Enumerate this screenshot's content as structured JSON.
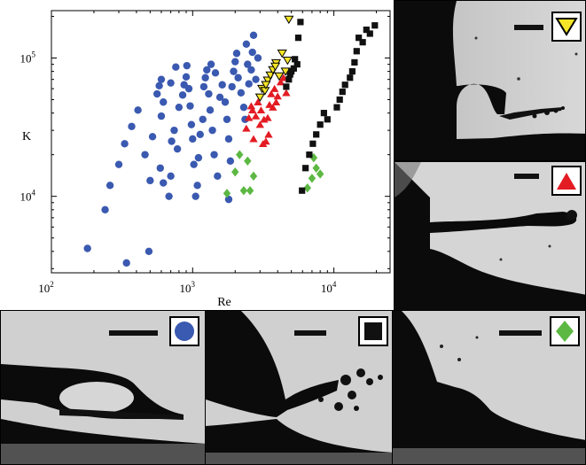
{
  "chart_data": {
    "type": "scatter",
    "xscale": "log",
    "yscale": "log",
    "xlabel": "Re",
    "ylabel": "K",
    "xlim": [
      100,
      25000
    ],
    "ylim": [
      2800,
      220000
    ],
    "xticks": [
      {
        "value": 100,
        "base": "10",
        "exp": "2"
      },
      {
        "value": 1000,
        "base": "10",
        "exp": "3"
      },
      {
        "value": 10000,
        "base": "10",
        "exp": "4"
      }
    ],
    "yticks": [
      {
        "value": 10000,
        "base": "10",
        "exp": "4"
      },
      {
        "value": 100000,
        "base": "10",
        "exp": "5"
      }
    ],
    "series": [
      {
        "marker": "circle",
        "color": "#3a59b0",
        "points": [
          [
            180,
            4200
          ],
          [
            240,
            8000
          ],
          [
            340,
            3300
          ],
          [
            490,
            4000
          ],
          [
            260,
            12000
          ],
          [
            300,
            17000
          ],
          [
            330,
            24000
          ],
          [
            370,
            32000
          ],
          [
            410,
            42000
          ],
          [
            460,
            20000
          ],
          [
            500,
            13000
          ],
          [
            520,
            27000
          ],
          [
            560,
            55000
          ],
          [
            580,
            63000
          ],
          [
            600,
            70000
          ],
          [
            620,
            48000
          ],
          [
            600,
            38000
          ],
          [
            590,
            16000
          ],
          [
            620,
            12500
          ],
          [
            680,
            10000
          ],
          [
            700,
            14000
          ],
          [
            710,
            25000
          ],
          [
            740,
            30000
          ],
          [
            780,
            22000
          ],
          [
            800,
            44000
          ],
          [
            850,
            54000
          ],
          [
            870,
            64000
          ],
          [
            900,
            73000
          ],
          [
            910,
            88000
          ],
          [
            940,
            60000
          ],
          [
            960,
            45000
          ],
          [
            980,
            33000
          ],
          [
            1000,
            26000
          ],
          [
            1020,
            17000
          ],
          [
            1050,
            10000
          ],
          [
            1080,
            12000
          ],
          [
            1100,
            19000
          ],
          [
            1130,
            28000
          ],
          [
            1180,
            36000
          ],
          [
            1200,
            62000
          ],
          [
            1230,
            72000
          ],
          [
            1260,
            82000
          ],
          [
            1300,
            55000
          ],
          [
            1330,
            42000
          ],
          [
            1380,
            30000
          ],
          [
            1420,
            20000
          ],
          [
            1500,
            14000
          ],
          [
            1560,
            52000
          ],
          [
            1620,
            64000
          ],
          [
            1700,
            48000
          ],
          [
            1750,
            36000
          ],
          [
            1800,
            26000
          ],
          [
            1800,
            9500
          ],
          [
            1850,
            18000
          ],
          [
            1900,
            62000
          ],
          [
            1950,
            80000
          ],
          [
            2000,
            94000
          ],
          [
            2050,
            108000
          ],
          [
            2100,
            72000
          ],
          [
            2200,
            56000
          ],
          [
            2300,
            44000
          ],
          [
            2350,
            36000
          ],
          [
            2400,
            126000
          ],
          [
            2450,
            90000
          ],
          [
            2500,
            65000
          ],
          [
            2600,
            82000
          ],
          [
            2650,
            110000
          ],
          [
            2700,
            146000
          ],
          [
            2800,
            70000
          ],
          [
            2900,
            100000
          ],
          [
            1450,
            78000
          ],
          [
            1350,
            90000
          ],
          [
            760,
            86000
          ],
          [
            700,
            66000
          ]
        ]
      },
      {
        "marker": "triangle-down",
        "color": "#f5e427",
        "points": [
          [
            3000,
            52000
          ],
          [
            3100,
            60000
          ],
          [
            3250,
            58000
          ],
          [
            3400,
            69000
          ],
          [
            3550,
            75000
          ],
          [
            3700,
            82000
          ],
          [
            3900,
            92000
          ],
          [
            4100,
            74000
          ],
          [
            4300,
            108000
          ],
          [
            4550,
            80000
          ],
          [
            4700,
            96000
          ],
          [
            4800,
            190000
          ],
          [
            3300,
            64000
          ],
          [
            3850,
            87000
          ]
        ]
      },
      {
        "marker": "triangle-up",
        "color": "#e31b23",
        "points": [
          [
            2400,
            31000
          ],
          [
            2500,
            37000
          ],
          [
            2650,
            42000
          ],
          [
            2700,
            26000
          ],
          [
            2800,
            38000
          ],
          [
            2900,
            48000
          ],
          [
            3000,
            33000
          ],
          [
            3050,
            42000
          ],
          [
            3200,
            36000
          ],
          [
            3300,
            25000
          ],
          [
            3400,
            37000
          ],
          [
            3500,
            46000
          ],
          [
            3600,
            55000
          ],
          [
            3700,
            44000
          ],
          [
            3800,
            60000
          ],
          [
            3900,
            48000
          ],
          [
            4000,
            53000
          ],
          [
            4200,
            67000
          ],
          [
            4400,
            72000
          ],
          [
            4600,
            56000
          ],
          [
            2600,
            45000
          ],
          [
            3450,
            28000
          ],
          [
            3150,
            24000
          ]
        ]
      },
      {
        "marker": "diamond",
        "color": "#5cb843",
        "points": [
          [
            1750,
            10500
          ],
          [
            2000,
            15000
          ],
          [
            2150,
            20000
          ],
          [
            2300,
            11000
          ],
          [
            2450,
            18000
          ],
          [
            2550,
            11000
          ],
          [
            2700,
            14000
          ],
          [
            6500,
            11500
          ],
          [
            7000,
            13500
          ],
          [
            7500,
            16000
          ],
          [
            8000,
            14500
          ],
          [
            7200,
            19000
          ]
        ]
      },
      {
        "marker": "square",
        "color": "#111111",
        "points": [
          [
            4600,
            62000
          ],
          [
            4800,
            70000
          ],
          [
            5000,
            80000
          ],
          [
            5200,
            84000
          ],
          [
            5500,
            90000
          ],
          [
            5600,
            140000
          ],
          [
            5800,
            182000
          ],
          [
            5950,
            11000
          ],
          [
            6300,
            16000
          ],
          [
            6700,
            20000
          ],
          [
            7100,
            24000
          ],
          [
            7500,
            28000
          ],
          [
            8000,
            33000
          ],
          [
            8500,
            40000
          ],
          [
            11000,
            50000
          ],
          [
            11500,
            57000
          ],
          [
            12000,
            64000
          ],
          [
            13000,
            72000
          ],
          [
            13500,
            80000
          ],
          [
            14000,
            93000
          ],
          [
            14500,
            112000
          ],
          [
            15000,
            140000
          ],
          [
            16000,
            130000
          ],
          [
            17000,
            160000
          ],
          [
            18000,
            150000
          ],
          [
            19500,
            172000
          ],
          [
            10500,
            44000
          ],
          [
            9000,
            36000
          ],
          [
            5300,
            98000
          ],
          [
            4900,
            76000
          ]
        ]
      }
    ],
    "insets": [
      {
        "marker": "triangle-down",
        "color": "#f5e427"
      },
      {
        "marker": "triangle-up",
        "color": "#e31b23"
      },
      {
        "marker": "circle",
        "color": "#3a59b0"
      },
      {
        "marker": "square",
        "color": "#111111"
      },
      {
        "marker": "diamond",
        "color": "#5cb843"
      }
    ]
  }
}
